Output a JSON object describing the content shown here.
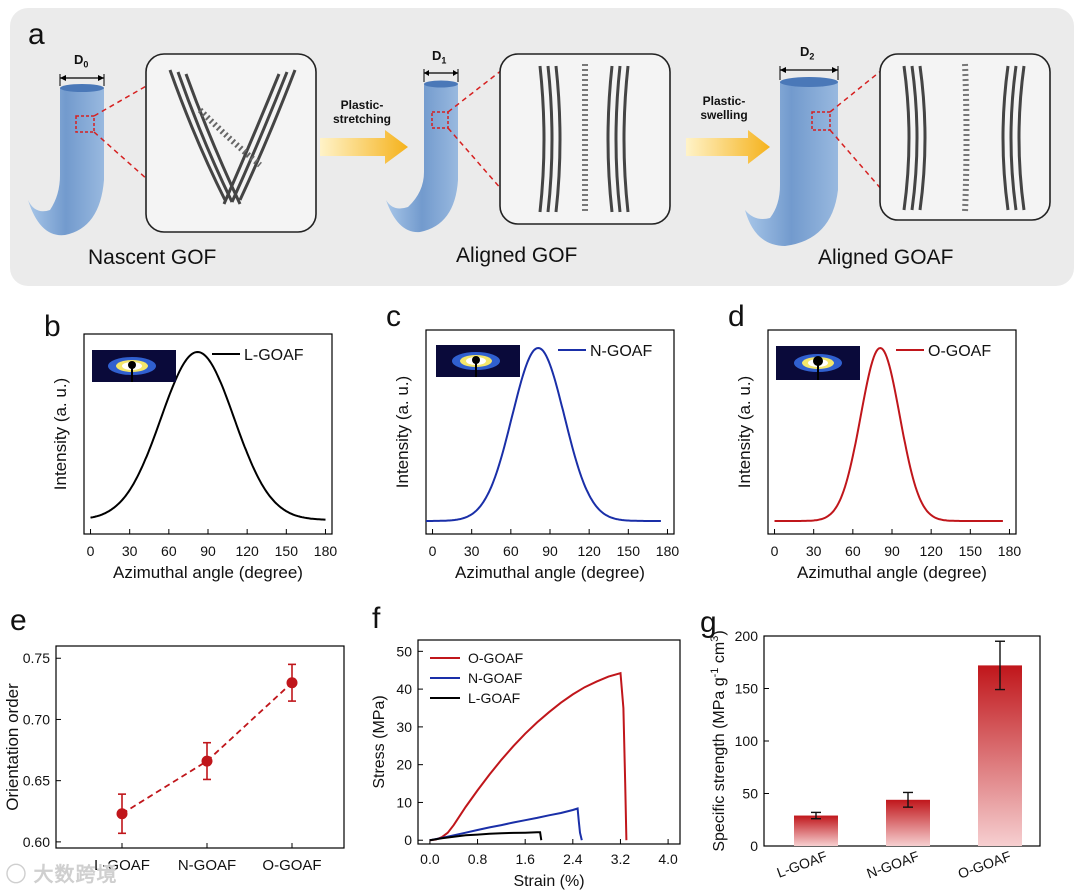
{
  "panel_a": {
    "label": "a",
    "stages": [
      {
        "title": "Nascent GOF",
        "diameter": "D0",
        "diameter_base": "D",
        "diameter_sub": "0"
      },
      {
        "title": "Aligned GOF",
        "diameter": "D1",
        "diameter_base": "D",
        "diameter_sub": "1"
      },
      {
        "title": "Aligned GOAF",
        "diameter": "D2",
        "diameter_base": "D",
        "diameter_sub": "2"
      }
    ],
    "arrows": [
      {
        "line1": "Plastic-",
        "line2": "stretching"
      },
      {
        "line1": "Plastic-",
        "line2": "swelling"
      }
    ],
    "colors": {
      "fiber": "#6e9bd0",
      "arrow": "#f5b21c",
      "dash": "#d62020",
      "sheet": "#444444"
    }
  },
  "chart_data": [
    {
      "id": "b",
      "label": "b",
      "type": "line",
      "xlabel": "Azimuthal angle (degree)",
      "ylabel": "Intensity (a. u.)",
      "xlim": [
        -5,
        185
      ],
      "xticks": [
        0,
        30,
        60,
        90,
        120,
        150,
        180
      ],
      "series": [
        {
          "name": "L-GOAF",
          "color": "#000000",
          "peak_x": 82,
          "sigma": 28,
          "x_range": [
            0,
            180
          ]
        }
      ]
    },
    {
      "id": "c",
      "label": "c",
      "type": "line",
      "xlabel": "Azimuthal angle (degree)",
      "ylabel": "Intensity (a. u.)",
      "xlim": [
        -5,
        185
      ],
      "xticks": [
        0,
        30,
        60,
        90,
        120,
        150,
        180
      ],
      "series": [
        {
          "name": "N-GOAF",
          "color": "#1a2fa8",
          "peak_x": 81,
          "sigma": 20,
          "x_range": [
            -5,
            175
          ]
        }
      ]
    },
    {
      "id": "d",
      "label": "d",
      "type": "line",
      "xlabel": "Azimuthal angle (degree)",
      "ylabel": "Intensity (a. u.)",
      "xlim": [
        -5,
        185
      ],
      "xticks": [
        0,
        30,
        60,
        90,
        120,
        150,
        180
      ],
      "series": [
        {
          "name": "O-GOAF",
          "color": "#c0161b",
          "peak_x": 81,
          "sigma": 15,
          "x_range": [
            0,
            175
          ]
        }
      ]
    },
    {
      "id": "e",
      "label": "e",
      "type": "scatter",
      "xlabel": "",
      "ylabel": "Orientation order",
      "categories": [
        "L-GOAF",
        "N-GOAF",
        "O-GOAF"
      ],
      "ylim": [
        0.595,
        0.76
      ],
      "yticks": [
        "0.60",
        "0.65",
        "0.70",
        "0.75"
      ],
      "series": [
        {
          "values": [
            0.623,
            0.666,
            0.73
          ],
          "errors": [
            0.016,
            0.015,
            0.015
          ],
          "color": "#c0161b"
        }
      ]
    },
    {
      "id": "f",
      "label": "f",
      "type": "line",
      "xlabel": "Strain (%)",
      "ylabel": "Stress (MPa)",
      "xlim": [
        -0.2,
        4.2
      ],
      "xticks": [
        "0.0",
        "0.8",
        "1.6",
        "2.4",
        "3.2",
        "4.0"
      ],
      "ylim": [
        -1,
        53
      ],
      "yticks": [
        "0",
        "10",
        "20",
        "30",
        "40",
        "50"
      ],
      "series": [
        {
          "name": "O-GOAF",
          "color": "#c0161b",
          "x": [
            0.0,
            0.1,
            0.2,
            0.3,
            0.4,
            0.6,
            0.8,
            1.0,
            1.2,
            1.4,
            1.6,
            1.8,
            2.0,
            2.2,
            2.4,
            2.6,
            2.8,
            3.0,
            3.2,
            3.25,
            3.28,
            3.3
          ],
          "y": [
            0.0,
            0.2,
            0.8,
            2.0,
            4.0,
            8.8,
            13.2,
            17.4,
            21.3,
            24.9,
            28.2,
            31.2,
            33.9,
            36.4,
            38.6,
            40.5,
            42.0,
            43.3,
            44.2,
            35.0,
            15.0,
            0.0
          ]
        },
        {
          "name": "N-GOAF",
          "color": "#1a2fa8",
          "x": [
            0.0,
            0.2,
            0.4,
            0.6,
            0.8,
            1.0,
            1.2,
            1.4,
            1.6,
            1.8,
            2.0,
            2.2,
            2.4,
            2.48,
            2.5,
            2.52,
            2.55
          ],
          "y": [
            0.0,
            0.6,
            1.3,
            2.0,
            2.7,
            3.4,
            4.0,
            4.7,
            5.3,
            5.9,
            6.6,
            7.2,
            8.0,
            8.4,
            5.0,
            2.0,
            0.0
          ]
        },
        {
          "name": "L-GOAF",
          "color": "#000000",
          "x": [
            0.0,
            0.2,
            0.4,
            0.6,
            0.8,
            1.0,
            1.2,
            1.4,
            1.6,
            1.8,
            1.85,
            1.86,
            1.87
          ],
          "y": [
            0.0,
            0.5,
            0.9,
            1.3,
            1.5,
            1.7,
            1.85,
            1.95,
            2.0,
            2.1,
            2.1,
            1.0,
            0.0
          ]
        }
      ]
    },
    {
      "id": "g",
      "label": "g",
      "type": "bar",
      "xlabel": "",
      "ylabel_parts": [
        "Specific strength (MPa g",
        "-1",
        " cm",
        "3",
        ")"
      ],
      "categories": [
        "L-GOAF",
        "N-GOAF",
        "O-GOAF"
      ],
      "values": [
        29,
        44,
        172
      ],
      "errors": [
        3,
        7,
        23
      ],
      "ylim": [
        0,
        200
      ],
      "yticks": [
        "0",
        "50",
        "100",
        "150",
        "200"
      ],
      "bar_color": "#c0161b"
    }
  ]
}
